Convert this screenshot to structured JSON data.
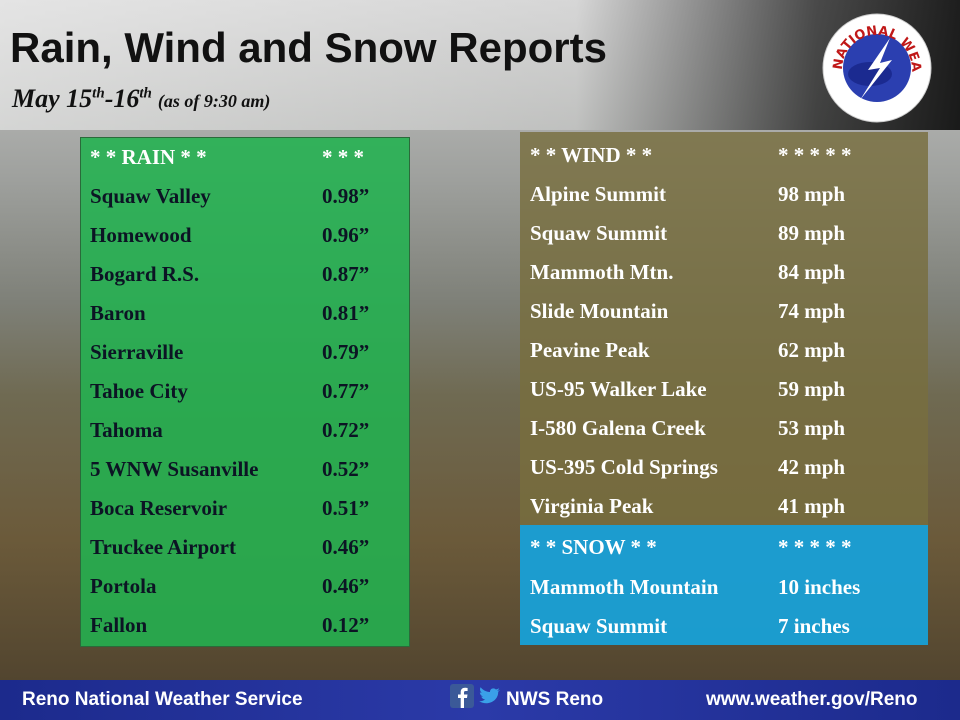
{
  "header": {
    "title": "Rain, Wind and Snow Reports",
    "date": [
      "May 15",
      "th",
      "-16",
      "th",
      "(as of 9:30 am)"
    ]
  },
  "logo": "NATIONAL WEATHER SERVICE",
  "rain": {
    "header": [
      "*  *   RAIN  * *",
      "*   *   *"
    ],
    "rows": [
      [
        "Squaw Valley",
        "0.98”"
      ],
      [
        "Homewood",
        "0.96”"
      ],
      [
        "Bogard R.S.",
        "0.87”"
      ],
      [
        "Baron",
        "0.81”"
      ],
      [
        "Sierraville",
        "0.79”"
      ],
      [
        "Tahoe City",
        "0.77”"
      ],
      [
        "Tahoma",
        "0.72”"
      ],
      [
        "5 WNW Susanville",
        "0.52”"
      ],
      [
        "Boca Reservoir",
        "0.51”"
      ],
      [
        "Truckee Airport",
        "0.46”"
      ],
      [
        "Portola",
        "0.46”"
      ],
      [
        "Fallon",
        "0.12”"
      ]
    ]
  },
  "wind": {
    "header": [
      "*   *   WIND  * *",
      "*   *   *   *   *"
    ],
    "rows": [
      [
        "Alpine Summit",
        "98 mph"
      ],
      [
        "Squaw Summit",
        "89 mph"
      ],
      [
        "Mammoth Mtn.",
        "84 mph"
      ],
      [
        "Slide Mountain",
        "74 mph"
      ],
      [
        "Peavine Peak",
        "62 mph"
      ],
      [
        "US-95 Walker Lake",
        "59 mph"
      ],
      [
        "I-580 Galena Creek",
        "53 mph"
      ],
      [
        "US-395 Cold Springs",
        "42 mph"
      ],
      [
        "Virginia Peak",
        "41 mph"
      ]
    ]
  },
  "snow": {
    "header": [
      "*   *   SNOW   * *",
      "*   *   *   *   *"
    ],
    "rows": [
      [
        "Mammoth Mountain",
        "10 inches"
      ],
      [
        "Squaw Summit",
        "7 inches"
      ]
    ]
  },
  "footer": {
    "org": "Reno National Weather Service",
    "social": "NWS Reno",
    "url": "www.weather.gov/Reno"
  }
}
